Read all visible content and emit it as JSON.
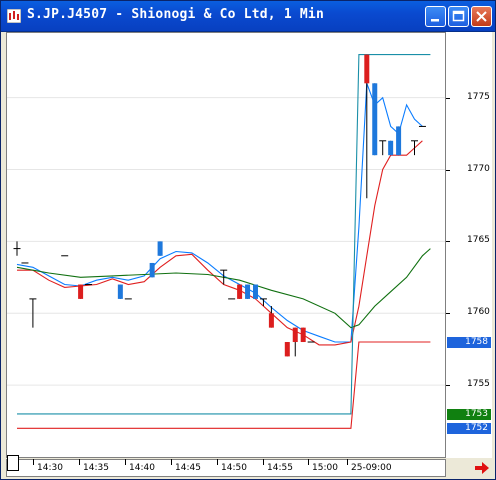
{
  "window": {
    "title": "S.JP.J4507 - Shionogi & Co Ltd, 1 Min"
  },
  "colors": {
    "up_bar": "#1e78dc",
    "down_bar": "#dc1e1e",
    "ma_fast": "#0a7cff",
    "ma_mid": "#e02020",
    "ma_slow": "#107010",
    "band": "#1a8fa8",
    "tag_blue": "#1e64dc",
    "tag_green": "#108010"
  },
  "chart_data": {
    "type": "candlestick",
    "y_axis": {
      "ticks": [
        1755,
        1760,
        1765,
        1770,
        1775
      ],
      "tick_labels": [
        "1755",
        "1760",
        "1765",
        "1770",
        "1775"
      ],
      "range": [
        1750.0,
        1779.5
      ]
    },
    "x_axis": {
      "tick_labels": [
        "14:30",
        "14:35",
        "14:40",
        "14:45",
        "14:50",
        "14:55",
        "15:00",
        "25-09:00"
      ]
    },
    "price_tags": [
      {
        "label": "1758",
        "value": 1758,
        "color": "blue"
      },
      {
        "label": "1753",
        "value": 1753,
        "color": "green"
      },
      {
        "label": "1752",
        "value": 1752,
        "color": "blue"
      }
    ],
    "candles": [
      {
        "x": 0,
        "o": 1764.5,
        "c": 1764.5,
        "h": 1765.0,
        "l": 1764.0
      },
      {
        "x": 1,
        "o": 1763.5,
        "c": 1763.5,
        "h": 1763.5,
        "l": 1763.5
      },
      {
        "x": 2,
        "o": 1761.0,
        "c": 1761.0,
        "h": 1761.0,
        "l": 1759.0
      },
      {
        "x": 6,
        "o": 1764.0,
        "c": 1764.0,
        "h": 1764.0,
        "l": 1764.0
      },
      {
        "x": 8,
        "o": 1762.0,
        "c": 1761.0,
        "h": 1762.0,
        "l": 1761.0
      },
      {
        "x": 9,
        "o": 1762.0,
        "c": 1762.0,
        "h": 1762.0,
        "l": 1762.0
      },
      {
        "x": 13,
        "o": 1761.0,
        "c": 1762.0,
        "h": 1762.0,
        "l": 1761.0
      },
      {
        "x": 14,
        "o": 1761.0,
        "c": 1761.0,
        "h": 1761.0,
        "l": 1761.0
      },
      {
        "x": 17,
        "o": 1762.5,
        "c": 1763.5,
        "h": 1763.5,
        "l": 1762.5
      },
      {
        "x": 18,
        "o": 1764.0,
        "c": 1765.0,
        "h": 1765.0,
        "l": 1764.0
      },
      {
        "x": 26,
        "o": 1763.0,
        "c": 1763.0,
        "h": 1763.0,
        "l": 1762.0
      },
      {
        "x": 27,
        "o": 1761.0,
        "c": 1761.0,
        "h": 1761.0,
        "l": 1761.0
      },
      {
        "x": 28,
        "o": 1762.0,
        "c": 1761.0,
        "h": 1762.0,
        "l": 1761.0
      },
      {
        "x": 29,
        "o": 1761.0,
        "c": 1762.0,
        "h": 1762.0,
        "l": 1761.0
      },
      {
        "x": 30,
        "o": 1761.0,
        "c": 1762.0,
        "h": 1762.0,
        "l": 1761.0
      },
      {
        "x": 31,
        "o": 1761.0,
        "c": 1761.0,
        "h": 1761.0,
        "l": 1760.5
      },
      {
        "x": 32,
        "o": 1760.0,
        "c": 1759.0,
        "h": 1760.5,
        "l": 1759.0
      },
      {
        "x": 34,
        "o": 1758.0,
        "c": 1757.0,
        "h": 1758.0,
        "l": 1757.0
      },
      {
        "x": 35,
        "o": 1759.0,
        "c": 1758.0,
        "h": 1759.0,
        "l": 1757.0
      },
      {
        "x": 36,
        "o": 1759.0,
        "c": 1758.0,
        "h": 1759.0,
        "l": 1758.0
      },
      {
        "x": 37,
        "o": 1758.0,
        "c": 1758.0,
        "h": 1758.0,
        "l": 1758.0
      },
      {
        "x": 44,
        "o": 1778.0,
        "c": 1776.0,
        "h": 1778.0,
        "l": 1768.0
      },
      {
        "x": 45,
        "o": 1771.0,
        "c": 1776.0,
        "h": 1776.0,
        "l": 1771.0
      },
      {
        "x": 46,
        "o": 1772.0,
        "c": 1772.0,
        "h": 1772.0,
        "l": 1771.0
      },
      {
        "x": 47,
        "o": 1771.0,
        "c": 1772.0,
        "h": 1772.0,
        "l": 1771.0
      },
      {
        "x": 48,
        "o": 1771.0,
        "c": 1773.0,
        "h": 1773.0,
        "l": 1771.0
      },
      {
        "x": 50,
        "o": 1772.0,
        "c": 1772.0,
        "h": 1772.0,
        "l": 1771.0
      },
      {
        "x": 51,
        "o": 1773.0,
        "c": 1773.0,
        "h": 1773.0,
        "l": 1773.0
      }
    ],
    "series": [
      {
        "kind": "ma_fast",
        "points": [
          [
            0,
            1763.4
          ],
          [
            2,
            1763.2
          ],
          [
            4,
            1762.6
          ],
          [
            6,
            1762.0
          ],
          [
            8,
            1761.9
          ],
          [
            10,
            1762.3
          ],
          [
            12,
            1762.5
          ],
          [
            14,
            1762.3
          ],
          [
            16,
            1762.6
          ],
          [
            18,
            1763.8
          ],
          [
            20,
            1764.3
          ],
          [
            22,
            1764.2
          ],
          [
            24,
            1763.5
          ],
          [
            26,
            1762.6
          ],
          [
            28,
            1762.0
          ],
          [
            30,
            1761.4
          ],
          [
            32,
            1760.4
          ],
          [
            34,
            1759.5
          ],
          [
            36,
            1758.8
          ],
          [
            38,
            1758.4
          ],
          [
            40,
            1758.0
          ],
          [
            42,
            1758.0
          ],
          [
            43,
            1766.0
          ],
          [
            44,
            1776.0
          ],
          [
            45,
            1774.5
          ],
          [
            46,
            1775.0
          ],
          [
            47,
            1773.0
          ],
          [
            48,
            1772.5
          ],
          [
            49,
            1774.5
          ],
          [
            50,
            1773.5
          ],
          [
            51,
            1773.0
          ]
        ]
      },
      {
        "kind": "ma_mid",
        "points": [
          [
            0,
            1763.0
          ],
          [
            2,
            1763.0
          ],
          [
            4,
            1762.3
          ],
          [
            6,
            1761.8
          ],
          [
            8,
            1761.9
          ],
          [
            10,
            1762.0
          ],
          [
            12,
            1762.4
          ],
          [
            14,
            1762.0
          ],
          [
            16,
            1762.2
          ],
          [
            18,
            1763.2
          ],
          [
            20,
            1764.0
          ],
          [
            22,
            1764.1
          ],
          [
            24,
            1763.0
          ],
          [
            26,
            1762.0
          ],
          [
            28,
            1761.6
          ],
          [
            30,
            1761.0
          ],
          [
            32,
            1760.0
          ],
          [
            34,
            1759.0
          ],
          [
            36,
            1758.5
          ],
          [
            38,
            1757.8
          ],
          [
            40,
            1757.8
          ],
          [
            42,
            1758.0
          ],
          [
            43,
            1760.5
          ],
          [
            44,
            1764.0
          ],
          [
            45,
            1767.5
          ],
          [
            46,
            1770.0
          ],
          [
            47,
            1771.0
          ],
          [
            48,
            1771.0
          ],
          [
            49,
            1771.0
          ],
          [
            50,
            1771.5
          ],
          [
            51,
            1772.0
          ]
        ]
      },
      {
        "kind": "ma_slow",
        "points": [
          [
            0,
            1763.2
          ],
          [
            4,
            1762.8
          ],
          [
            8,
            1762.5
          ],
          [
            12,
            1762.6
          ],
          [
            16,
            1762.7
          ],
          [
            20,
            1762.8
          ],
          [
            24,
            1762.7
          ],
          [
            28,
            1762.3
          ],
          [
            32,
            1761.6
          ],
          [
            36,
            1761.0
          ],
          [
            40,
            1760.0
          ],
          [
            42,
            1759.0
          ],
          [
            43,
            1759.2
          ],
          [
            45,
            1760.5
          ],
          [
            47,
            1761.5
          ],
          [
            49,
            1762.5
          ],
          [
            51,
            1764.0
          ],
          [
            52,
            1764.5
          ]
        ]
      },
      {
        "kind": "band_upper",
        "points": [
          [
            0,
            1753.0
          ],
          [
            41,
            1753.0
          ],
          [
            42,
            1753.0
          ],
          [
            43,
            1778.0
          ],
          [
            52,
            1778.0
          ]
        ]
      },
      {
        "kind": "band_lower",
        "points": [
          [
            0,
            1752.0
          ],
          [
            41,
            1752.0
          ],
          [
            42,
            1752.0
          ],
          [
            43,
            1758.0
          ],
          [
            52,
            1758.0
          ]
        ]
      }
    ]
  }
}
